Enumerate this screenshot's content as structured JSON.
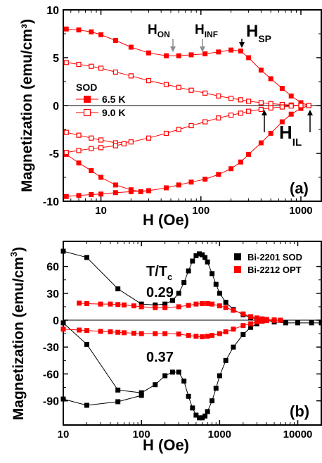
{
  "chart_data": [
    {
      "panel": "(a)",
      "type": "line",
      "xscale": "log",
      "xlim": [
        4.2,
        1600
      ],
      "ylim": [
        -10,
        10
      ],
      "xlabel": "H (Oe)",
      "ylabel": "Magnetization (emu/cm³)",
      "xticks": [
        10,
        100,
        1000
      ],
      "xtick_labels": [
        "10",
        "100",
        "1000"
      ],
      "yticks": [
        -10,
        -5,
        0,
        5,
        10
      ],
      "ytick_labels": [
        "-10",
        "-5",
        "0",
        "5",
        "10"
      ],
      "legend": {
        "title": "SOD",
        "position": "left-middle"
      },
      "annotations": [
        {
          "base": "H",
          "sub": "ON",
          "color": "#8c8c8c",
          "arrow_at": [
            52,
            5.8
          ]
        },
        {
          "base": "H",
          "sub": "INF",
          "color": "#8c8c8c",
          "arrow_at": [
            118,
            6.2
          ]
        },
        {
          "base": "H",
          "sub": "SP",
          "color": "#000000",
          "arrow_at": [
            240,
            6.4
          ]
        },
        {
          "base": "H",
          "sub": "IL",
          "color": "#000000",
          "arrow_at": [
            [
              400,
              -0.2
            ],
            [
              1230,
              -0.2
            ]
          ]
        }
      ],
      "series": [
        {
          "name": "6.5 K",
          "marker": "filled-square",
          "color": "#ff0000",
          "branches": [
            {
              "x": [
                4.5,
                6,
                8,
                10,
                14,
                20,
                30,
                45,
                60,
                80,
                110,
                150,
                200,
                250,
                300,
                400,
                500,
                650,
                800,
                1000,
                1200
              ],
              "y": [
                8.0,
                7.9,
                7.7,
                7.4,
                6.8,
                6.1,
                5.5,
                5.2,
                5.2,
                5.3,
                5.4,
                5.6,
                5.8,
                5.7,
                5.0,
                3.7,
                2.8,
                1.8,
                1.0,
                0.3,
                0.0
              ]
            },
            {
              "x": [
                4.5,
                6,
                8,
                10,
                14,
                20,
                25,
                30,
                45,
                60,
                80,
                110,
                150,
                200,
                250,
                300,
                400,
                500,
                650,
                800,
                1000,
                1200
              ],
              "y": [
                -5.1,
                -6.0,
                -6.8,
                -7.5,
                -8.3,
                -8.8,
                -9.0,
                -8.9,
                -8.6,
                -8.3,
                -8.0,
                -7.7,
                -7.2,
                -6.6,
                -5.9,
                -5.1,
                -3.9,
                -2.9,
                -1.7,
                -0.9,
                -0.3,
                0.0
              ]
            },
            {
              "x": [
                4.5,
                6,
                8,
                10,
                14,
                20,
                30
              ],
              "y": [
                -9.5,
                -9.4,
                -9.3,
                -9.25,
                -9.1,
                -9.0,
                -8.9
              ]
            }
          ]
        },
        {
          "name": "9.0 K",
          "marker": "open-square",
          "color": "#ff0000",
          "branches": [
            {
              "x": [
                4.5,
                6,
                8,
                10,
                14,
                20,
                30,
                45,
                60,
                80,
                110,
                150,
                200,
                250,
                300,
                400,
                500,
                650,
                800,
                1000,
                1200
              ],
              "y": [
                4.5,
                4.3,
                4.1,
                3.9,
                3.5,
                3.1,
                2.6,
                2.2,
                1.9,
                1.6,
                1.3,
                1.0,
                0.75,
                0.6,
                0.45,
                0.3,
                0.2,
                0.1,
                0.05,
                0.0,
                0.0
              ]
            },
            {
              "x": [
                4.5,
                6,
                8,
                10,
                14,
                20,
                30,
                45,
                60,
                80,
                110,
                150,
                200,
                250,
                300,
                400,
                500,
                650,
                800,
                1000,
                1200
              ],
              "y": [
                -2.8,
                -3.1,
                -3.4,
                -3.6,
                -3.9,
                -3.8,
                -3.4,
                -2.9,
                -2.5,
                -2.1,
                -1.7,
                -1.3,
                -1.0,
                -0.8,
                -0.6,
                -0.4,
                -0.25,
                -0.15,
                -0.05,
                0.0,
                0.0
              ]
            },
            {
              "x": [
                4.5,
                6,
                8,
                10,
                14,
                17
              ],
              "y": [
                -4.9,
                -4.7,
                -4.5,
                -4.4,
                -4.2,
                -4.0
              ]
            }
          ]
        }
      ]
    },
    {
      "panel": "(b)",
      "type": "line",
      "xscale": "log",
      "xlim": [
        10,
        20000
      ],
      "ylim": [
        -117,
        88
      ],
      "xlabel": "H (Oe)",
      "ylabel": "Magnetization (emu/cm³)",
      "xticks": [
        10,
        100,
        1000,
        10000
      ],
      "xtick_labels": [
        "10",
        "100",
        "1000",
        "10000"
      ],
      "yticks": [
        -90,
        -60,
        -30,
        0,
        30,
        60
      ],
      "ytick_labels": [
        "-90",
        "-60",
        "-30",
        "0",
        "30",
        "60"
      ],
      "legend": {
        "position": "top-right"
      },
      "annotations": [
        {
          "text": "0.29",
          "color": "#333333"
        },
        {
          "text": "0.37",
          "color": "#ff0000"
        }
      ],
      "series": [
        {
          "name": "Bi-2201 SOD",
          "marker": "filled-square",
          "color": "#000000",
          "ratio": "0.29",
          "branches": [
            {
              "x": [
                10,
                20,
                50,
                100,
                150,
                200,
                250,
                300,
                350,
                400,
                450,
                500,
                550,
                600,
                650,
                700,
                800,
                900,
                1000,
                1200,
                1500,
                2000,
                2500,
                3000,
                3500,
                4000,
                5000,
                7000,
                10000,
                15000,
                20000
              ],
              "y": [
                77,
                70,
                35,
                18,
                17,
                18,
                22,
                30,
                42,
                55,
                66,
                72,
                74,
                73,
                70,
                65,
                52,
                40,
                30,
                20,
                12,
                6,
                3,
                1.5,
                0.5,
                0,
                -2,
                -3,
                -3,
                -3,
                -3
              ]
            },
            {
              "x": [
                10,
                20,
                50,
                100,
                150,
                200,
                250,
                300,
                350,
                400,
                450,
                500,
                550,
                600,
                650,
                700,
                800,
                900,
                1000,
                1200,
                1500,
                2000,
                2500,
                3000,
                3500,
                4000
              ],
              "y": [
                -3,
                -27,
                -78,
                -81,
                -72,
                -62,
                -58,
                -58,
                -68,
                -85,
                -98,
                -106,
                -109,
                -109,
                -107,
                -102,
                -90,
                -76,
                -62,
                -45,
                -30,
                -16,
                -8,
                -4,
                -1,
                0
              ]
            },
            {
              "x": [
                10,
                20,
                50,
                100
              ],
              "y": [
                -88,
                -95,
                -91,
                -84
              ]
            }
          ]
        },
        {
          "name": "Bi-2212 OPT",
          "marker": "filled-square",
          "color": "#ff0000",
          "ratio": "0.37",
          "branches": [
            {
              "x": [
                16,
                20,
                30,
                40,
                50,
                60,
                80,
                100,
                150,
                200,
                300,
                400,
                500,
                600,
                700,
                800,
                1000,
                1200,
                1500,
                2000,
                2500,
                3000,
                3500,
                4000,
                5000,
                6000
              ],
              "y": [
                19,
                18.5,
                18,
                18,
                17.5,
                17,
                16,
                15,
                14,
                14,
                15,
                16.5,
                18,
                18.5,
                18.5,
                18,
                16,
                14,
                11,
                7,
                4,
                2.5,
                1.5,
                0.8,
                0.3,
                0
              ]
            },
            {
              "x": [
                10,
                16,
                20,
                30,
                40,
                50,
                60,
                80,
                100,
                150,
                200,
                300,
                400,
                500,
                600,
                700,
                800,
                1000,
                1200,
                1500,
                2000,
                2500,
                3000,
                3500,
                4000,
                5000,
                6000
              ],
              "y": [
                -10,
                -11,
                -11.5,
                -12.5,
                -13,
                -13.5,
                -14,
                -14.5,
                -15,
                -15,
                -15,
                -15.5,
                -17,
                -18,
                -18.5,
                -18,
                -17,
                -15,
                -13,
                -10,
                -6,
                -4,
                -2,
                -1,
                -0.5,
                -0.2,
                0
              ]
            }
          ]
        }
      ]
    }
  ],
  "labels": {
    "a_xlabel": "H (Oe)",
    "a_ylabel": "Magnetization (emu/cm³)",
    "a_panel": "(a)",
    "a_legend_title": "SOD",
    "a_series1": "6.5 K",
    "a_series2": "9.0 K",
    "h_base": "H",
    "h_on_sub": "ON",
    "h_inf_sub": "INF",
    "h_sp_sub": "SP",
    "h_il_sub": "IL",
    "b_xlabel": "H (Oe)",
    "b_ylabel_main": "Magnetization (emu/cm",
    "b_ylabel_sup": "3",
    "b_ylabel_close": ")",
    "b_panel": "(b)",
    "b_ratio_T": "T/T",
    "b_ratio_sub": "c",
    "b_val1": "0.29",
    "b_val2": "0.37",
    "b_series1": "Bi-2201 SOD",
    "b_series2": "Bi-2212 OPT"
  },
  "colors": {
    "red": "#ff0000",
    "black": "#000000",
    "gray": "#8c8c8c",
    "dark": "#333333"
  }
}
